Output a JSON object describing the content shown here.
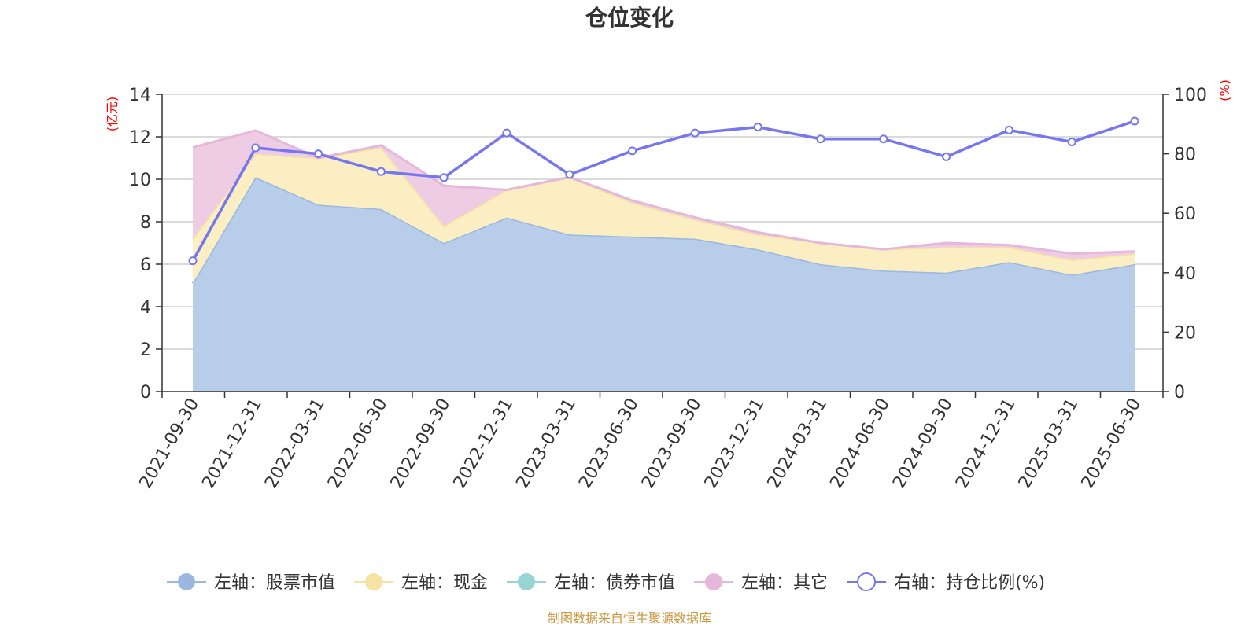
{
  "chart_data": {
    "type": "area",
    "title": "仓位变化",
    "left_axis": {
      "unit": "(亿元)",
      "ylim": [
        0,
        14
      ],
      "ticks": [
        0,
        2,
        4,
        6,
        8,
        10,
        12,
        14
      ]
    },
    "right_axis": {
      "unit": "(%)",
      "ylim": [
        0,
        100
      ],
      "ticks": [
        0,
        20,
        40,
        60,
        80,
        100
      ]
    },
    "categories": [
      "2021-09-30",
      "2021-12-31",
      "2022-03-31",
      "2022-06-30",
      "2022-09-30",
      "2022-12-31",
      "2023-03-31",
      "2023-06-30",
      "2023-09-30",
      "2023-12-31",
      "2024-03-31",
      "2024-06-30",
      "2024-09-30",
      "2024-12-31",
      "2025-03-31",
      "2025-06-30"
    ],
    "series": [
      {
        "name": "左轴：股票市值",
        "axis": "left",
        "stack": true,
        "color": "#9ab7e0",
        "fill": "#b8cdea",
        "values": [
          5.1,
          10.1,
          8.8,
          8.6,
          7.0,
          8.2,
          7.4,
          7.3,
          7.2,
          6.7,
          6.0,
          5.7,
          5.6,
          6.1,
          5.5,
          6.0
        ]
      },
      {
        "name": "左轴：现金",
        "axis": "left",
        "stack": true,
        "color": "#f5e3a3",
        "fill": "#fbeec3",
        "values": [
          2.1,
          1.1,
          2.2,
          2.9,
          0.8,
          1.3,
          2.7,
          1.6,
          0.9,
          0.7,
          1.0,
          1.0,
          1.2,
          0.7,
          0.7,
          0.5
        ]
      },
      {
        "name": "左轴：债券市值",
        "axis": "left",
        "stack": true,
        "color": "#98d4d4",
        "fill": "#bfe6e6",
        "values": [
          0,
          0,
          0,
          0,
          0,
          0,
          0,
          0,
          0,
          0,
          0,
          0,
          0,
          0,
          0,
          0
        ]
      },
      {
        "name": "左轴：其它",
        "axis": "left",
        "stack": true,
        "color": "#e5b7da",
        "fill": "#eecde4",
        "values": [
          4.3,
          1.1,
          0,
          0.1,
          1.9,
          0,
          0,
          0.1,
          0.1,
          0.1,
          0,
          0,
          0.2,
          0.1,
          0.3,
          0.1
        ]
      },
      {
        "name": "右轴：持仓比例(%)",
        "axis": "right",
        "stack": false,
        "color": "#7676ee",
        "values": [
          44,
          82,
          80,
          74,
          72,
          87,
          73,
          81,
          87,
          89,
          85,
          85,
          79,
          88,
          84,
          91
        ]
      }
    ],
    "legend_position": "bottom",
    "grid": true
  },
  "source": "制图数据来自恒生聚源数据库"
}
